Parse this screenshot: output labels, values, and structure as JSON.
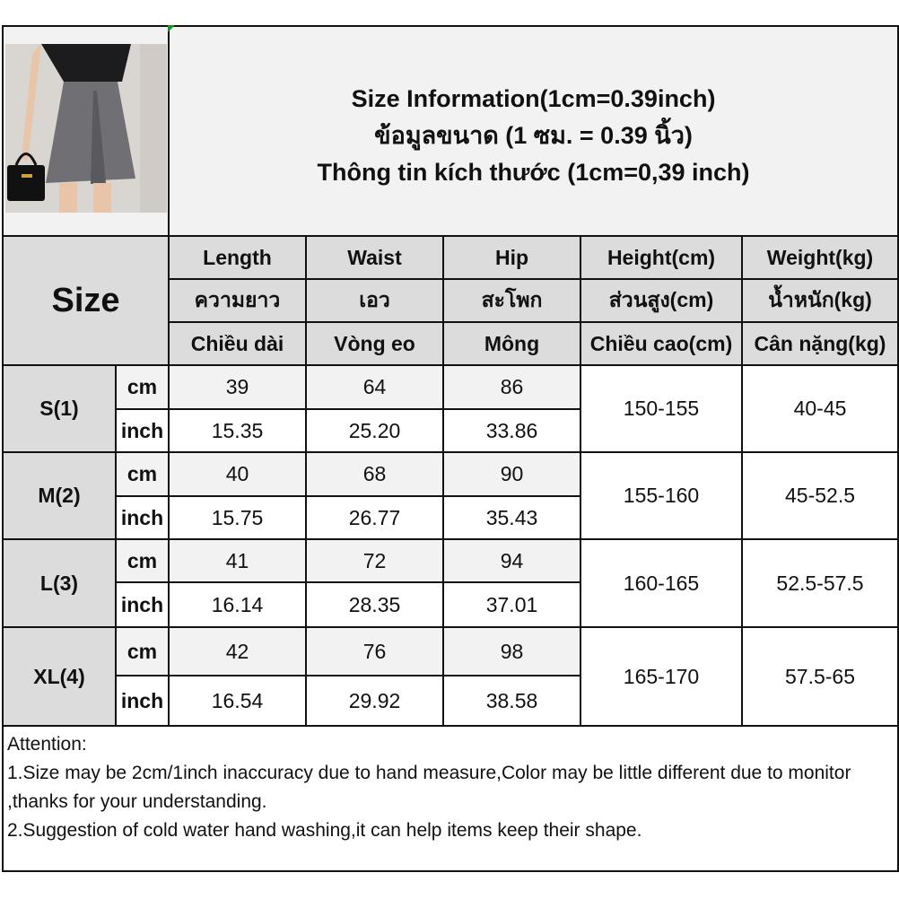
{
  "title": {
    "line1": "Size Information(1cm=0.39inch)",
    "line2": "ข้อมูลขนาด (1 ซม. = 0.39 นิ้ว)",
    "line3": "Thông tin kích thước (1cm=0,39 inch)"
  },
  "size_header": "Size",
  "columns": [
    {
      "en": "Length",
      "th": "ความยาว",
      "vi": "Chiều dài"
    },
    {
      "en": "Waist",
      "th": "เอว",
      "vi": "Vòng eo"
    },
    {
      "en": "Hip",
      "th": "สะโพก",
      "vi": "Mông"
    },
    {
      "en": "Height(cm)",
      "th": "ส่วนสูง(cm)",
      "vi": "Chiều cao(cm)"
    },
    {
      "en": "Weight(kg)",
      "th": "น้ำหนัก(kg)",
      "vi": "Cân nặng(kg)"
    }
  ],
  "units": {
    "cm": "cm",
    "inch": "inch"
  },
  "sizes": [
    {
      "size": "S(1)",
      "cm": [
        "39",
        "64",
        "86"
      ],
      "inch": [
        "15.35",
        "25.20",
        "33.86"
      ],
      "height": "150-155",
      "weight": "40-45"
    },
    {
      "size": "M(2)",
      "cm": [
        "40",
        "68",
        "90"
      ],
      "inch": [
        "15.75",
        "26.77",
        "35.43"
      ],
      "height": "155-160",
      "weight": "45-52.5"
    },
    {
      "size": "L(3)",
      "cm": [
        "41",
        "72",
        "94"
      ],
      "inch": [
        "16.14",
        "28.35",
        "37.01"
      ],
      "height": "160-165",
      "weight": "52.5-57.5"
    },
    {
      "size": "XL(4)",
      "cm": [
        "42",
        "76",
        "98"
      ],
      "inch": [
        "16.54",
        "29.92",
        "38.58"
      ],
      "height": "165-170",
      "weight": "57.5-65"
    }
  ],
  "attention": {
    "heading": "Attention:",
    "note1": "1.Size may be 2cm/1inch inaccuracy due to hand measure,Color may be little different due to monitor ,thanks for your understanding.",
    "note2": "2.Suggestion of cold water hand washing,it can help items keep their shape."
  }
}
